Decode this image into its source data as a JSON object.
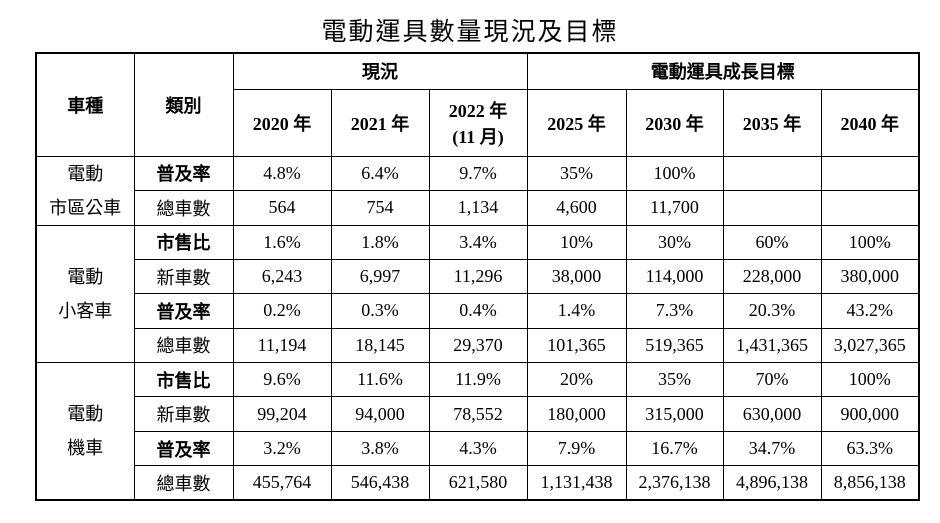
{
  "title": "電動運具數量現況及目標",
  "table": {
    "header": {
      "vehicle": "車種",
      "category": "類別",
      "current": "現況",
      "target": "電動運具成長目標",
      "years": [
        "2020 年",
        "2021 年",
        "2022 年\n(11 月)",
        "2025 年",
        "2030 年",
        "2035 年",
        "2040 年"
      ]
    },
    "groups": [
      {
        "label": "電動\n市區公車",
        "rows": [
          {
            "category": "普及率",
            "values": [
              "4.8%",
              "6.4%",
              "9.7%",
              "35%",
              "100%"
            ]
          },
          {
            "category": "總車數",
            "values": [
              "564",
              "754",
              "1,134",
              "4,600",
              "11,700"
            ]
          }
        ]
      },
      {
        "label": "電動\n小客車",
        "rows": [
          {
            "category": "市售比",
            "values": [
              "1.6%",
              "1.8%",
              "3.4%",
              "10%",
              "30%",
              "60%",
              "100%"
            ]
          },
          {
            "category": "新車數",
            "values": [
              "6,243",
              "6,997",
              "11,296",
              "38,000",
              "114,000",
              "228,000",
              "380,000"
            ]
          },
          {
            "category": "普及率",
            "values": [
              "0.2%",
              "0.3%",
              "0.4%",
              "1.4%",
              "7.3%",
              "20.3%",
              "43.2%"
            ]
          },
          {
            "category": "總車數",
            "values": [
              "11,194",
              "18,145",
              "29,370",
              "101,365",
              "519,365",
              "1,431,365",
              "3,027,365"
            ]
          }
        ]
      },
      {
        "label": "電動\n機車",
        "rows": [
          {
            "category": "市售比",
            "values": [
              "9.6%",
              "11.6%",
              "11.9%",
              "20%",
              "35%",
              "70%",
              "100%"
            ]
          },
          {
            "category": "新車數",
            "values": [
              "99,204",
              "94,000",
              "78,552",
              "180,000",
              "315,000",
              "630,000",
              "900,000"
            ]
          },
          {
            "category": "普及率",
            "values": [
              "3.2%",
              "3.8%",
              "4.3%",
              "7.9%",
              "16.7%",
              "34.7%",
              "63.3%"
            ]
          },
          {
            "category": "總車數",
            "values": [
              "455,764",
              "546,438",
              "621,580",
              "1,131,438",
              "2,376,138",
              "4,896,138",
              "8,856,138"
            ]
          }
        ]
      }
    ]
  }
}
